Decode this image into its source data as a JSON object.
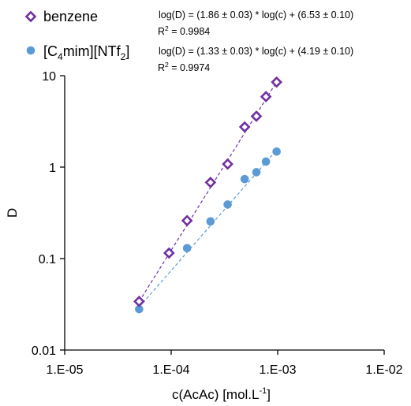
{
  "chart_data": {
    "type": "scatter",
    "x_scale": "log",
    "y_scale": "log",
    "xlim": [
      1e-05,
      0.01
    ],
    "ylim": [
      0.01,
      10
    ],
    "x_ticks": [
      1e-05,
      0.0001,
      0.001,
      0.01
    ],
    "x_tick_labels": [
      "1.E-05",
      "1.E-04",
      "1.E-03",
      "1.E-02"
    ],
    "y_ticks": [
      0.01,
      0.1,
      1,
      10
    ],
    "y_tick_labels": [
      "0.01",
      "0.1",
      "1",
      "10"
    ],
    "xlabel_main": "c(AcAc) [mol.L",
    "xlabel_sup": "-1",
    "xlabel_end": "]",
    "ylabel": "D",
    "grid": false,
    "legend_position": "top-left",
    "series": [
      {
        "name": "benzene",
        "label_parts": [
          {
            "t": "benzene",
            "s": "n"
          }
        ],
        "marker": "diamond-open",
        "color": "#7030a0",
        "x": [
          5e-05,
          9.55e-05,
          0.000141,
          0.000234,
          0.000339,
          0.00049,
          0.000631,
          0.000776,
          0.000977
        ],
        "y": [
          0.034,
          0.115,
          0.26,
          0.68,
          1.08,
          2.75,
          3.6,
          5.9,
          8.5
        ],
        "fit": {
          "slope": 1.86,
          "intercept": 6.53,
          "equation": "log(D) = (1.86 ± 0.03) * log(c) + (6.53 ± 0.10)",
          "r2_label": "R",
          "r2_sup": "2",
          "r2_value": " = 0.9984"
        }
      },
      {
        "name": "[C4mim][NTf2]",
        "label_parts": [
          {
            "t": "[C",
            "s": "n"
          },
          {
            "t": "4",
            "s": "sub"
          },
          {
            "t": "mim][NTf",
            "s": "n"
          },
          {
            "t": "2",
            "s": "sub"
          },
          {
            "t": "]",
            "s": "n"
          }
        ],
        "marker": "circle",
        "color": "#5b9bd5",
        "x": [
          5e-05,
          0.000141,
          0.000234,
          0.000339,
          0.00049,
          0.000631,
          0.000776,
          0.000977
        ],
        "y": [
          0.028,
          0.13,
          0.255,
          0.39,
          0.74,
          0.88,
          1.15,
          1.48
        ],
        "fit": {
          "slope": 1.33,
          "intercept": 4.19,
          "equation": "log(D) = (1.33 ± 0.03) * log(c) + (4.19 ± 0.10)",
          "r2_label": "R",
          "r2_sup": "2",
          "r2_value": " = 0.9974"
        }
      }
    ]
  }
}
